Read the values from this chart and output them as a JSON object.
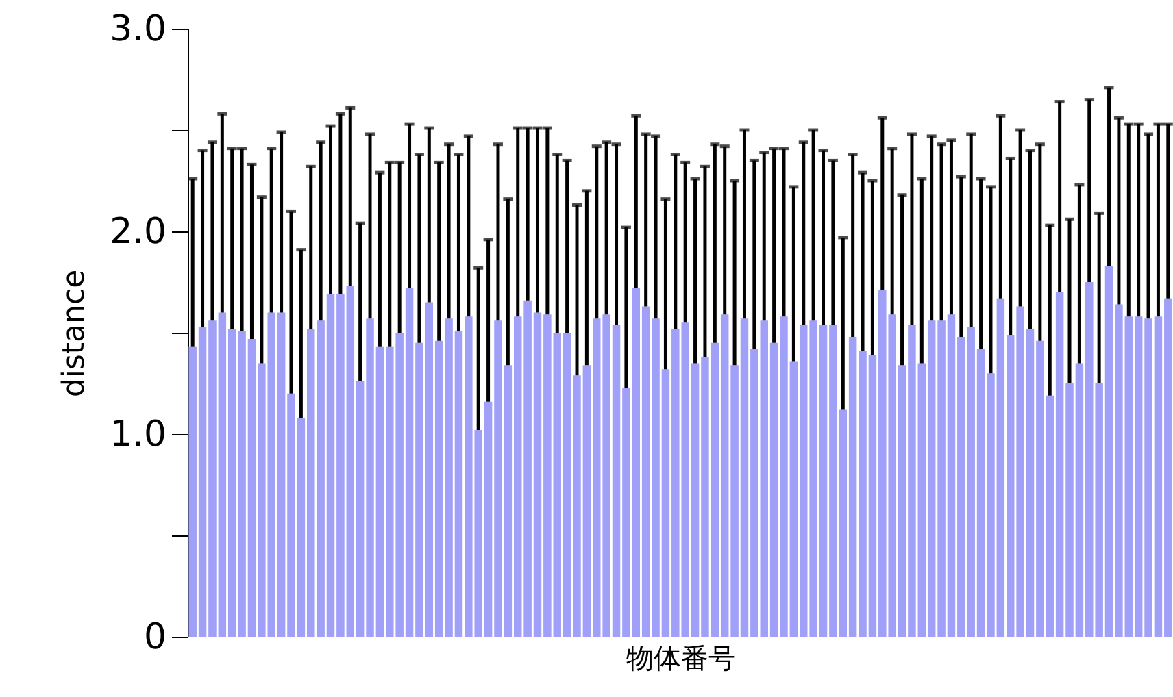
{
  "chart_data": {
    "type": "bar",
    "xlabel": "物体番号",
    "ylabel": "distance",
    "categories": [
      null,
      null,
      null,
      null,
      null,
      null,
      null,
      null,
      null,
      null,
      null,
      null,
      null,
      null,
      null,
      null,
      null,
      null,
      null,
      null,
      null,
      null,
      null,
      null,
      null,
      null,
      null,
      null,
      null,
      null,
      null,
      null,
      null,
      null,
      null,
      null,
      null,
      null,
      null,
      null,
      null,
      null,
      null,
      null,
      null,
      null,
      null,
      null,
      null,
      null,
      null,
      null,
      null,
      null,
      null,
      null,
      null,
      null,
      null,
      null,
      null,
      null,
      null,
      null,
      null,
      null,
      null,
      null,
      null,
      null,
      null,
      null,
      null,
      null,
      null,
      null,
      null,
      null,
      null,
      null,
      null,
      null,
      null,
      null,
      null,
      null,
      null,
      null,
      null,
      null,
      null,
      null,
      null,
      null,
      null,
      null,
      null,
      null,
      null,
      null
    ],
    "color": "#a0a0f8",
    "values": [
      1.43,
      1.53,
      1.56,
      1.6,
      1.52,
      1.51,
      1.47,
      1.35,
      1.6,
      1.6,
      1.2,
      1.08,
      1.52,
      1.56,
      1.69,
      1.69,
      1.73,
      1.26,
      1.57,
      1.43,
      1.43,
      1.5,
      1.72,
      1.45,
      1.65,
      1.46,
      1.57,
      1.51,
      1.58,
      1.02,
      1.16,
      1.56,
      1.34,
      1.58,
      1.66,
      1.6,
      1.59,
      1.5,
      1.5,
      1.29,
      1.34,
      1.57,
      1.59,
      1.54,
      1.23,
      1.72,
      1.63,
      1.57,
      1.32,
      1.52,
      1.55,
      1.35,
      1.38,
      1.45,
      1.59,
      1.34,
      1.57,
      1.42,
      1.56,
      1.45,
      1.58,
      1.36,
      1.54,
      1.56,
      1.54,
      1.54,
      1.12,
      1.48,
      1.41,
      1.39,
      1.71,
      1.59,
      1.34,
      1.54,
      1.35,
      1.56,
      1.56,
      1.59,
      1.48,
      1.53,
      1.42,
      1.3,
      1.67,
      1.49,
      1.63,
      1.52,
      1.46,
      1.19,
      1.7,
      1.25,
      1.35,
      1.75,
      1.25,
      1.83,
      1.64,
      1.58,
      1.58,
      1.57,
      1.58,
      1.67
    ],
    "errors": [
      [
        1.43,
        2.26
      ],
      [
        1.53,
        2.4
      ],
      [
        1.56,
        2.44
      ],
      [
        1.6,
        2.58
      ],
      [
        1.52,
        2.41
      ],
      [
        1.51,
        2.41
      ],
      [
        1.47,
        2.33
      ],
      [
        1.35,
        2.17
      ],
      [
        1.6,
        2.41
      ],
      [
        1.6,
        2.49
      ],
      [
        1.2,
        2.1
      ],
      [
        1.08,
        1.91
      ],
      [
        1.52,
        2.32
      ],
      [
        1.56,
        2.44
      ],
      [
        1.69,
        2.52
      ],
      [
        1.69,
        2.58
      ],
      [
        1.73,
        2.61
      ],
      [
        1.26,
        2.04
      ],
      [
        1.57,
        2.48
      ],
      [
        1.43,
        2.29
      ],
      [
        1.43,
        2.34
      ],
      [
        1.5,
        2.34
      ],
      [
        1.72,
        2.53
      ],
      [
        1.45,
        2.38
      ],
      [
        1.65,
        2.51
      ],
      [
        1.46,
        2.34
      ],
      [
        1.57,
        2.43
      ],
      [
        1.51,
        2.38
      ],
      [
        1.58,
        2.47
      ],
      [
        1.02,
        1.82
      ],
      [
        1.16,
        1.96
      ],
      [
        1.56,
        2.43
      ],
      [
        1.34,
        2.16
      ],
      [
        1.58,
        2.51
      ],
      [
        1.66,
        2.51
      ],
      [
        1.6,
        2.51
      ],
      [
        1.59,
        2.51
      ],
      [
        1.5,
        2.38
      ],
      [
        1.5,
        2.35
      ],
      [
        1.29,
        2.13
      ],
      [
        1.34,
        2.2
      ],
      [
        1.57,
        2.42
      ],
      [
        1.59,
        2.44
      ],
      [
        1.54,
        2.43
      ],
      [
        1.23,
        2.02
      ],
      [
        1.72,
        2.57
      ],
      [
        1.63,
        2.48
      ],
      [
        1.57,
        2.47
      ],
      [
        1.32,
        2.16
      ],
      [
        1.52,
        2.38
      ],
      [
        1.55,
        2.34
      ],
      [
        1.35,
        2.26
      ],
      [
        1.38,
        2.32
      ],
      [
        1.45,
        2.43
      ],
      [
        1.59,
        2.42
      ],
      [
        1.34,
        2.25
      ],
      [
        1.57,
        2.5
      ],
      [
        1.42,
        2.35
      ],
      [
        1.56,
        2.39
      ],
      [
        1.45,
        2.41
      ],
      [
        1.58,
        2.41
      ],
      [
        1.36,
        2.22
      ],
      [
        1.54,
        2.44
      ],
      [
        1.56,
        2.5
      ],
      [
        1.54,
        2.4
      ],
      [
        1.54,
        2.35
      ],
      [
        1.12,
        1.97
      ],
      [
        1.48,
        2.38
      ],
      [
        1.41,
        2.29
      ],
      [
        1.39,
        2.25
      ],
      [
        1.71,
        2.56
      ],
      [
        1.59,
        2.41
      ],
      [
        1.34,
        2.18
      ],
      [
        1.54,
        2.48
      ],
      [
        1.35,
        2.26
      ],
      [
        1.56,
        2.47
      ],
      [
        1.56,
        2.43
      ],
      [
        1.59,
        2.45
      ],
      [
        1.48,
        2.27
      ],
      [
        1.53,
        2.48
      ],
      [
        1.42,
        2.26
      ],
      [
        1.3,
        2.22
      ],
      [
        1.67,
        2.57
      ],
      [
        1.49,
        2.36
      ],
      [
        1.63,
        2.5
      ],
      [
        1.52,
        2.4
      ],
      [
        1.46,
        2.43
      ],
      [
        1.19,
        2.03
      ],
      [
        1.7,
        2.64
      ],
      [
        1.25,
        2.06
      ],
      [
        1.35,
        2.23
      ],
      [
        1.75,
        2.65
      ],
      [
        1.25,
        2.09
      ],
      [
        1.83,
        2.71
      ],
      [
        1.64,
        2.56
      ],
      [
        1.58,
        2.53
      ],
      [
        1.58,
        2.53
      ],
      [
        1.57,
        2.48
      ],
      [
        1.58,
        2.53
      ],
      [
        1.67,
        2.53
      ]
    ],
    "ylim": [
      0,
      3.0
    ],
    "yticks": [
      {
        "value": 0,
        "label": "0"
      },
      {
        "value": 0.5,
        "label": null
      },
      {
        "value": 1.0,
        "label": "1.0"
      },
      {
        "value": 1.5,
        "label": null
      },
      {
        "value": 2.0,
        "label": "2.0"
      },
      {
        "value": 2.5,
        "label": null
      },
      {
        "value": 3.0,
        "label": "3.0"
      }
    ],
    "grid": false
  }
}
